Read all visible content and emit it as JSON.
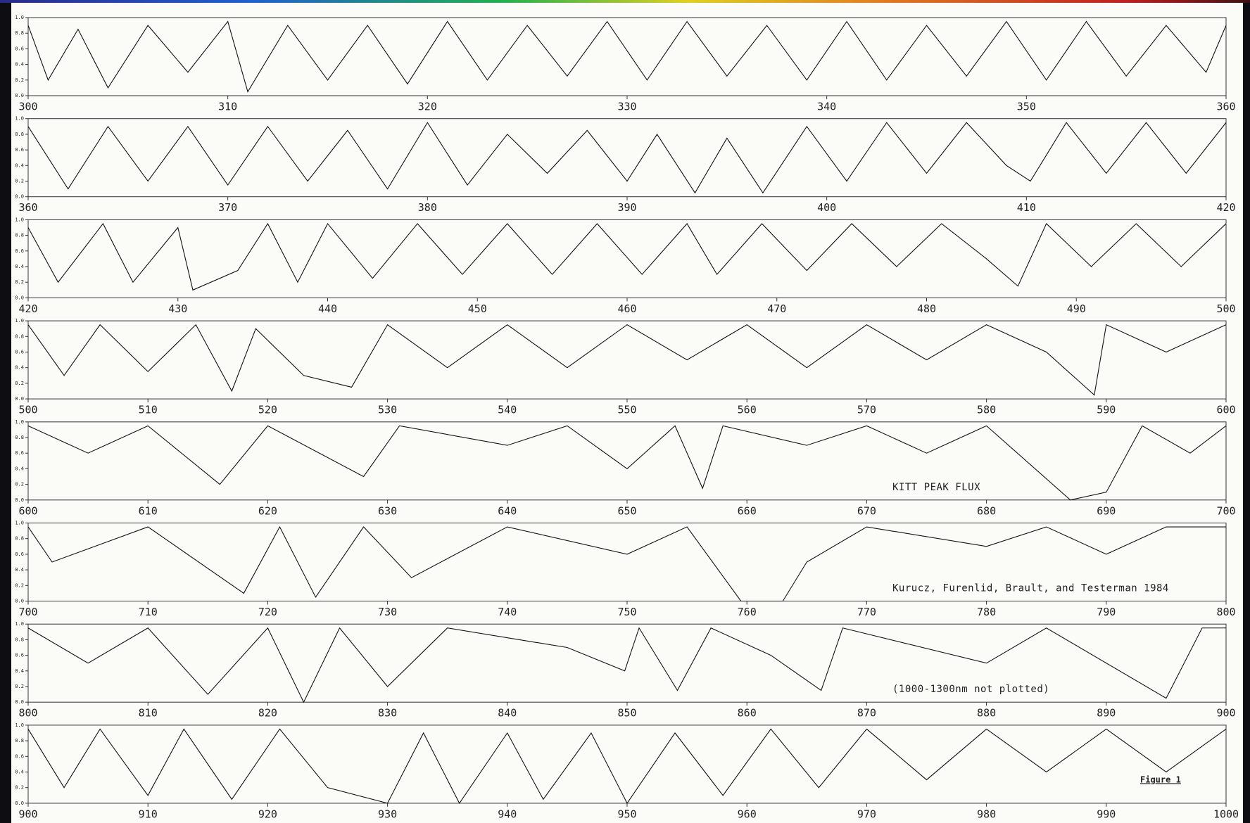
{
  "chart_data": [
    {
      "type": "line",
      "xlim": [
        300,
        360
      ],
      "xticks": [
        300,
        310,
        320,
        330,
        340,
        350,
        360
      ],
      "ylim": [
        0,
        1
      ],
      "yticks": [
        {
          "value": 0,
          "label": "0.0"
        },
        0.2,
        0.4,
        0.6,
        0.8,
        {
          "value": 1,
          "label": "1.0"
        }
      ],
      "color": "#111111",
      "x": [
        300,
        301,
        302.5,
        304,
        306,
        308,
        310,
        311,
        313,
        315,
        317,
        319,
        321,
        323,
        325,
        327,
        329,
        331,
        333,
        335,
        337,
        339,
        341,
        343,
        345,
        347,
        349,
        351,
        353,
        355,
        357,
        359,
        360
      ],
      "values": [
        0.9,
        0.2,
        0.85,
        0.1,
        0.9,
        0.3,
        0.95,
        0.05,
        0.9,
        0.2,
        0.9,
        0.15,
        0.95,
        0.2,
        0.9,
        0.25,
        0.95,
        0.2,
        0.95,
        0.25,
        0.9,
        0.2,
        0.95,
        0.2,
        0.9,
        0.25,
        0.95,
        0.2,
        0.95,
        0.25,
        0.9,
        0.3,
        0.9
      ]
    },
    {
      "type": "line",
      "xlim": [
        360,
        420
      ],
      "xticks": [
        360,
        370,
        380,
        390,
        400,
        410,
        420
      ],
      "ylim": [
        0,
        1
      ],
      "yticks": [
        {
          "value": 0,
          "label": "0.0"
        },
        0.2,
        0.4,
        0.6,
        0.8,
        {
          "value": 1,
          "label": "1.0"
        }
      ],
      "color": "#111111",
      "x": [
        360,
        362,
        364,
        366,
        368,
        370,
        372,
        374,
        376,
        378,
        380,
        382,
        384,
        386,
        388,
        390,
        391.5,
        393.4,
        395,
        396.8,
        399,
        401,
        403,
        405,
        407,
        409,
        410.2,
        412,
        414,
        416,
        418,
        420
      ],
      "values": [
        0.9,
        0.1,
        0.9,
        0.2,
        0.9,
        0.15,
        0.9,
        0.2,
        0.85,
        0.1,
        0.95,
        0.15,
        0.8,
        0.3,
        0.85,
        0.2,
        0.8,
        0.05,
        0.75,
        0.05,
        0.9,
        0.2,
        0.95,
        0.3,
        0.95,
        0.4,
        0.2,
        0.95,
        0.3,
        0.95,
        0.3,
        0.95
      ]
    },
    {
      "type": "line",
      "xlim": [
        420,
        500
      ],
      "xticks": [
        420,
        430,
        440,
        450,
        460,
        470,
        480,
        490,
        500
      ],
      "ylim": [
        0,
        1
      ],
      "yticks": [
        {
          "value": 0,
          "label": "0.0"
        },
        0.2,
        0.4,
        0.6,
        0.8,
        {
          "value": 1,
          "label": "1.0"
        }
      ],
      "color": "#111111",
      "x": [
        420,
        422,
        425,
        427,
        430,
        431,
        434,
        436,
        438,
        440,
        443,
        446,
        449,
        452,
        455,
        458,
        461,
        464,
        466,
        469,
        472,
        475,
        478,
        481,
        484,
        486.1,
        488,
        491,
        494,
        497,
        500
      ],
      "values": [
        0.9,
        0.2,
        0.95,
        0.2,
        0.9,
        0.1,
        0.35,
        0.95,
        0.2,
        0.95,
        0.25,
        0.95,
        0.3,
        0.95,
        0.3,
        0.95,
        0.3,
        0.95,
        0.3,
        0.95,
        0.35,
        0.95,
        0.4,
        0.95,
        0.5,
        0.15,
        0.95,
        0.4,
        0.95,
        0.4,
        0.95
      ]
    },
    {
      "type": "line",
      "xlim": [
        500,
        600
      ],
      "xticks": [
        500,
        510,
        520,
        530,
        540,
        550,
        560,
        570,
        580,
        590,
        600
      ],
      "ylim": [
        0,
        1
      ],
      "yticks": [
        {
          "value": 0,
          "label": "0.0"
        },
        0.2,
        0.4,
        0.6,
        0.8,
        {
          "value": 1,
          "label": "1.0"
        }
      ],
      "color": "#111111",
      "x": [
        500,
        503,
        506,
        510,
        514,
        517,
        519,
        523,
        527,
        530,
        535,
        540,
        545,
        550,
        555,
        560,
        565,
        570,
        575,
        580,
        585,
        589,
        590,
        595,
        600
      ],
      "values": [
        0.95,
        0.3,
        0.95,
        0.35,
        0.95,
        0.1,
        0.9,
        0.3,
        0.15,
        0.95,
        0.4,
        0.95,
        0.4,
        0.95,
        0.5,
        0.95,
        0.4,
        0.95,
        0.5,
        0.95,
        0.6,
        0.05,
        0.95,
        0.6,
        0.95
      ]
    },
    {
      "type": "line",
      "xlim": [
        600,
        700
      ],
      "xticks": [
        600,
        610,
        620,
        630,
        640,
        650,
        660,
        670,
        680,
        690,
        700
      ],
      "ylim": [
        0,
        1
      ],
      "yticks": [
        {
          "value": 0,
          "label": "0.0"
        },
        0.2,
        0.4,
        0.6,
        0.8,
        {
          "value": 1,
          "label": "1.0"
        }
      ],
      "color": "#111111",
      "annotation": "KITT PEAK FLUX",
      "x": [
        600,
        605,
        610,
        616,
        620,
        628,
        631,
        640,
        645,
        650,
        654,
        656.3,
        658,
        665,
        670,
        675,
        680,
        687,
        690,
        693,
        697,
        700
      ],
      "values": [
        0.95,
        0.6,
        0.95,
        0.2,
        0.95,
        0.3,
        0.95,
        0.7,
        0.95,
        0.4,
        0.95,
        0.15,
        0.95,
        0.7,
        0.95,
        0.6,
        0.95,
        0.0,
        0.1,
        0.95,
        0.6,
        0.95
      ]
    },
    {
      "type": "line",
      "xlim": [
        700,
        800
      ],
      "xticks": [
        700,
        710,
        720,
        730,
        740,
        750,
        760,
        770,
        780,
        790,
        800
      ],
      "ylim": [
        0,
        1
      ],
      "yticks": [
        {
          "value": 0,
          "label": "0.0"
        },
        0.2,
        0.4,
        0.6,
        0.8,
        {
          "value": 1,
          "label": "1.0"
        }
      ],
      "color": "#111111",
      "annotation": "Kurucz, Furenlid, Brault, and Testerman 1984",
      "x": [
        700,
        702,
        710,
        718,
        721,
        724,
        728,
        732,
        740,
        750,
        755,
        759.5,
        763,
        765,
        770,
        780,
        785,
        790,
        795,
        800
      ],
      "values": [
        0.95,
        0.5,
        0.95,
        0.1,
        0.95,
        0.05,
        0.95,
        0.3,
        0.95,
        0.6,
        0.95,
        0.0,
        0.0,
        0.5,
        0.95,
        0.7,
        0.95,
        0.6,
        0.95,
        0.95
      ]
    },
    {
      "type": "line",
      "xlim": [
        800,
        900
      ],
      "xticks": [
        800,
        810,
        820,
        830,
        840,
        850,
        860,
        870,
        880,
        890,
        900
      ],
      "ylim": [
        0,
        1
      ],
      "yticks": [
        {
          "value": 0,
          "label": "0.0"
        },
        0.2,
        0.4,
        0.6,
        0.8,
        {
          "value": 1,
          "label": "1.0"
        }
      ],
      "color": "#111111",
      "annotation": "(1000-1300nm not plotted)",
      "x": [
        800,
        805,
        810,
        815,
        820,
        823,
        826,
        830,
        835,
        845,
        849.8,
        851,
        854.2,
        857,
        862,
        866.2,
        868,
        880,
        885,
        895,
        898,
        900
      ],
      "values": [
        0.95,
        0.5,
        0.95,
        0.1,
        0.95,
        0.0,
        0.95,
        0.2,
        0.95,
        0.7,
        0.4,
        0.95,
        0.15,
        0.95,
        0.6,
        0.15,
        0.95,
        0.5,
        0.95,
        0.05,
        0.95,
        0.95
      ]
    },
    {
      "type": "line",
      "xlim": [
        900,
        1000
      ],
      "xticks": [
        900,
        910,
        920,
        930,
        940,
        950,
        960,
        970,
        980,
        990,
        1000
      ],
      "ylim": [
        0,
        1
      ],
      "yticks": [
        {
          "value": 0,
          "label": "0.0"
        },
        0.2,
        0.4,
        0.6,
        0.8,
        {
          "value": 1,
          "label": "1.0"
        }
      ],
      "color": "#111111",
      "annotation": "Figure 1",
      "x": [
        900,
        903,
        906,
        910,
        913,
        917,
        921,
        925,
        930,
        933,
        936,
        940,
        943,
        947,
        950,
        954,
        958,
        962,
        966,
        970,
        975,
        980,
        985,
        990,
        995,
        1000
      ],
      "values": [
        0.95,
        0.2,
        0.95,
        0.1,
        0.95,
        0.05,
        0.95,
        0.2,
        0.0,
        0.9,
        0.0,
        0.9,
        0.05,
        0.9,
        0.0,
        0.9,
        0.1,
        0.95,
        0.2,
        0.95,
        0.3,
        0.95,
        0.4,
        0.95,
        0.4,
        0.95
      ]
    }
  ]
}
